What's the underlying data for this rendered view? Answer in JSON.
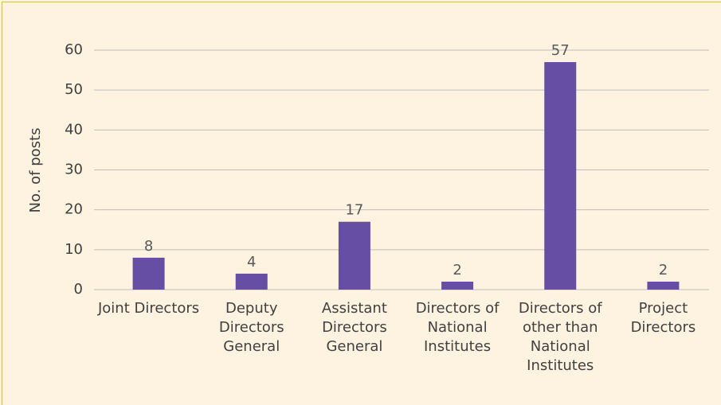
{
  "chart_data": {
    "type": "bar",
    "y_label": "No. of posts",
    "categories": [
      "Joint Directors",
      "Deputy Directors General",
      "Assistant Directors General",
      "Directors of National Institutes",
      "Directors of other than National Institutes",
      "Project Directors"
    ],
    "values": [
      8,
      4,
      17,
      2,
      57,
      2
    ],
    "color": "#654ea3",
    "ylim": [
      0,
      60
    ],
    "yticks": [
      0,
      10,
      20,
      30,
      40,
      50,
      60
    ],
    "grid": true
  }
}
